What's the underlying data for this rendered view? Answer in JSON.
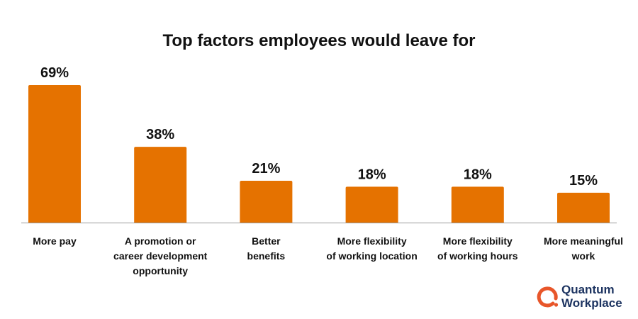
{
  "chart_data": {
    "type": "bar",
    "title": "Top factors employees would leave for",
    "categories": [
      "More pay",
      "A promotion or\ncareer development\nopportunity",
      "Better\nbenefits",
      "More flexibility\nof working location",
      "More flexibility\nof working hours",
      "More meaningful\nwork"
    ],
    "values": [
      69,
      38,
      21,
      18,
      18,
      15
    ],
    "data_labels": [
      "69%",
      "38%",
      "21%",
      "18%",
      "18%",
      "15%"
    ],
    "xlabel": "",
    "ylabel": "",
    "ylim": [
      0,
      69
    ],
    "grid": false,
    "bar_color": "#e57200"
  },
  "logo": {
    "text": "Quantum\nWorkplace",
    "ring_color": "#e8562a",
    "text_color": "#1d3461"
  }
}
